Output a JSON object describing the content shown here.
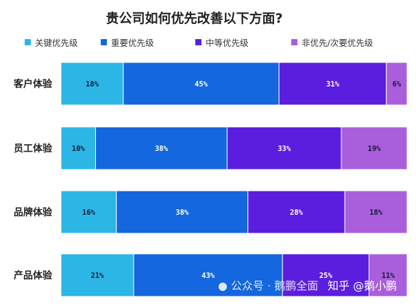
{
  "chart_data": {
    "type": "bar",
    "orientation": "horizontal-stacked-100",
    "title": "贵公司如何优先改善以下方面?",
    "categories": [
      "客户体验",
      "员工体验",
      "品牌体验",
      "产品体验"
    ],
    "series": [
      {
        "name": "关键优先级",
        "color": "#2BB6E6",
        "values": [
          18,
          10,
          16,
          21
        ]
      },
      {
        "name": "重要优先级",
        "color": "#1467DE",
        "values": [
          45,
          38,
          38,
          43
        ]
      },
      {
        "name": "中等优先级",
        "color": "#5B1EDF",
        "values": [
          31,
          33,
          28,
          25
        ]
      },
      {
        "name": "非优先/次要优先级",
        "color": "#A95EDB",
        "values": [
          6,
          19,
          18,
          11
        ]
      }
    ],
    "value_suffix": "%",
    "legend": "top",
    "grid": false
  },
  "watermark": {
    "left": "公众号 · 鹅鹏全面",
    "right": "知乎 @鹅小鹏"
  }
}
